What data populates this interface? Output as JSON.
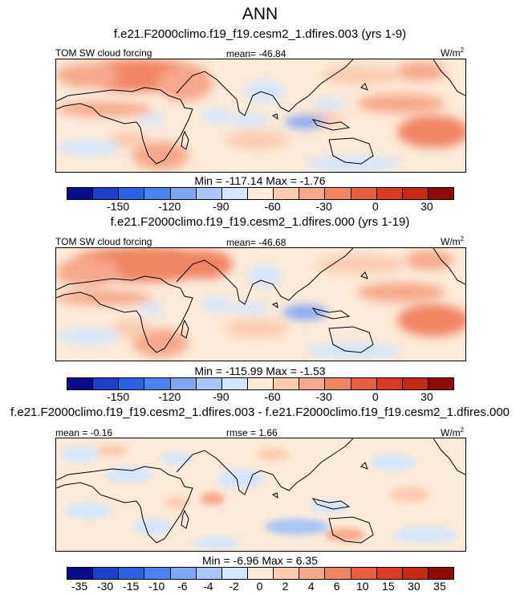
{
  "title": "ANN",
  "panels": [
    {
      "case_title": "f.e21.F2000climo.f19_f19.cesm2_1.dfires.003 (yrs 1-9)",
      "variable": "TOM SW cloud forcing",
      "mean_text": "mean= -46.84",
      "units": "W/m",
      "units_sup": "2",
      "stats_text": "Min = -117.14 Max =  -1.76"
    },
    {
      "case_title": "f.e21.F2000climo.f19_f19.cesm2_1.dfires.000 (yrs 1-19)",
      "variable": "TOM SW cloud forcing",
      "mean_text": "mean= -46.68",
      "units": "W/m",
      "units_sup": "2",
      "stats_text": "Min = -115.99 Max =  -1.53"
    },
    {
      "case_title": "f.e21.F2000climo.f19_f19.cesm2_1.dfires.003 - f.e21.F2000climo.f19_f19.cesm2_1.dfires.000",
      "mean_text": "mean =  -0.16",
      "rmse_text": "rmse =  1.66",
      "units": "W/m",
      "units_sup": "2",
      "stats_text": "Min =  -6.96 Max =   6.35"
    }
  ],
  "colorbars": {
    "abs": {
      "colors": [
        "#0a0a8c",
        "#1a3fcc",
        "#2d62e6",
        "#4a82f0",
        "#7fa6f4",
        "#a9c6f7",
        "#d5e5fa",
        "#fdebd9",
        "#fbcdb0",
        "#f6a88a",
        "#f08463",
        "#e9603f",
        "#db3b22",
        "#c22a12",
        "#8b0a0a"
      ],
      "labels": [
        "-150",
        "-120",
        "-90",
        "-60",
        "-30",
        "0",
        "30"
      ]
    },
    "diff": {
      "colors": [
        "#0a0a8c",
        "#1a3fcc",
        "#2d62e6",
        "#4a82f0",
        "#7fa6f4",
        "#a9c6f7",
        "#d5e5fa",
        "#fdebd9",
        "#fbcdb0",
        "#f6a88a",
        "#f08463",
        "#e9603f",
        "#db3b22",
        "#c22a12",
        "#8b0a0a"
      ],
      "labels": [
        "-35",
        "-30",
        "-15",
        "-10",
        "-6",
        "-4",
        "-2",
        "0",
        "2",
        "4",
        "6",
        "10",
        "15",
        "30",
        "35"
      ]
    }
  }
}
